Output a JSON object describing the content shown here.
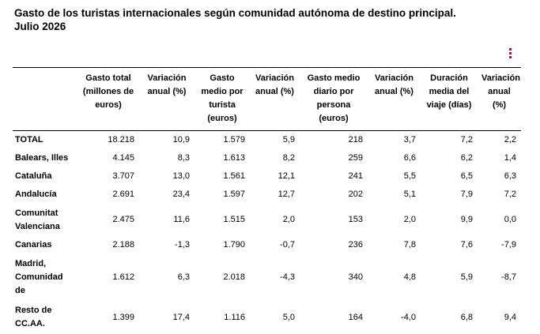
{
  "title": {
    "line1": "Gasto de los turistas internacionales según comunidad autónoma de destino principal.",
    "line2": "Julio 2026"
  },
  "menu": {
    "icon": "kebab-menu-icon"
  },
  "accent_color": "#9b1b30",
  "table": {
    "headers": [
      "",
      "Gasto total (millones de euros)",
      "Variación anual (%)",
      "Gasto medio por turista (euros)",
      "Variación anual (%)",
      "Gasto medio diario por persona (euros)",
      "Variación anual (%)",
      "Duración media del viaje (días)",
      "Variación anual (%)"
    ],
    "rows": [
      [
        "TOTAL",
        "18.218",
        "10,9",
        "1.579",
        "5,9",
        "218",
        "3,7",
        "7,2",
        "2,2"
      ],
      [
        "Balears, Illes",
        "4.145",
        "8,3",
        "1.613",
        "8,2",
        "259",
        "6,6",
        "6,2",
        "1,4"
      ],
      [
        "Cataluña",
        "3.707",
        "13,0",
        "1.561",
        "12,1",
        "241",
        "5,5",
        "6,5",
        "6,3"
      ],
      [
        "Andalucía",
        "2.691",
        "23,4",
        "1.597",
        "12,7",
        "202",
        "5,1",
        "7,9",
        "7,2"
      ],
      [
        "Comunitat Valenciana",
        "2.475",
        "11,6",
        "1.515",
        "2,0",
        "153",
        "2,0",
        "9,9",
        "0,0"
      ],
      [
        "Canarias",
        "2.188",
        "-1,3",
        "1.790",
        "-0,7",
        "236",
        "7,8",
        "7,6",
        "-7,9"
      ],
      [
        "Madrid, Comunidad de",
        "1.612",
        "6,3",
        "2.018",
        "-4,3",
        "340",
        "4,8",
        "5,9",
        "-8,7"
      ],
      [
        "Resto de CC.AA.",
        "1.399",
        "17,4",
        "1.116",
        "5,0",
        "164",
        "-4,0",
        "6,8",
        "9,4"
      ]
    ]
  }
}
